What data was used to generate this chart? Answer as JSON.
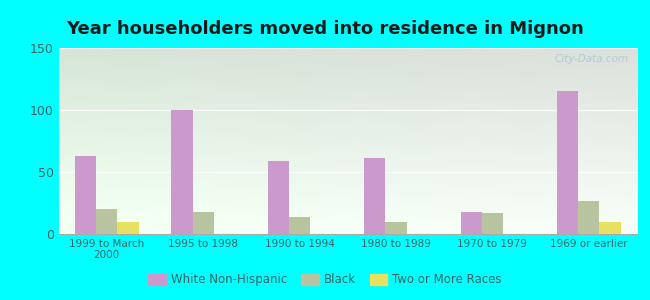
{
  "title": "Year householders moved into residence in Mignon",
  "categories": [
    "1999 to March\n2000",
    "1995 to 1998",
    "1990 to 1994",
    "1980 to 1989",
    "1970 to 1979",
    "1969 or earlier"
  ],
  "white_non_hispanic": [
    63,
    100,
    59,
    61,
    18,
    115
  ],
  "black": [
    20,
    18,
    14,
    10,
    17,
    27
  ],
  "two_or_more_races": [
    10,
    0,
    0,
    0,
    0,
    10
  ],
  "colors": {
    "white_non_hispanic": "#cc99cc",
    "black": "#b8c4a0",
    "two_or_more_races": "#e8e060"
  },
  "ylim": [
    0,
    150
  ],
  "yticks": [
    0,
    50,
    100,
    150
  ],
  "background_color": "#00ffff",
  "legend_labels": [
    "White Non-Hispanic",
    "Black",
    "Two or More Races"
  ],
  "bar_width": 0.22,
  "title_fontsize": 13,
  "tick_color": "#336666",
  "watermark": "City-Data.com"
}
